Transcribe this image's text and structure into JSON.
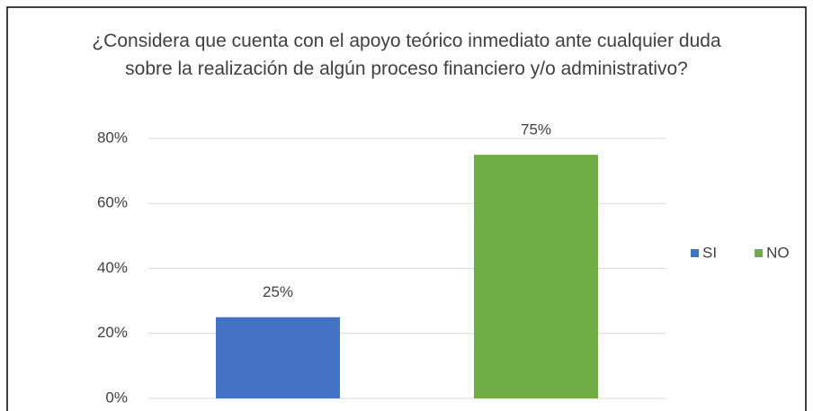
{
  "chart_data": {
    "type": "bar",
    "title": "¿Considera que cuenta con el apoyo teórico inmediato ante cualquier duda sobre la realización de algún proceso financiero y/o administrativo?",
    "categories": [
      null
    ],
    "series": [
      {
        "name": "SI",
        "color": "#4472c4",
        "values": [
          25
        ],
        "value_labels": [
          "25%"
        ]
      },
      {
        "name": "NO",
        "color": "#70ad47",
        "values": [
          75
        ],
        "value_labels": [
          "75%"
        ]
      }
    ],
    "ylim": [
      0,
      80
    ],
    "yticks": [
      {
        "value": 0,
        "label": "0%"
      },
      {
        "value": 20,
        "label": "20%"
      },
      {
        "value": 40,
        "label": "40%"
      },
      {
        "value": 60,
        "label": "60%"
      },
      {
        "value": 80,
        "label": "80%"
      }
    ],
    "grid": true,
    "legend": "right"
  }
}
